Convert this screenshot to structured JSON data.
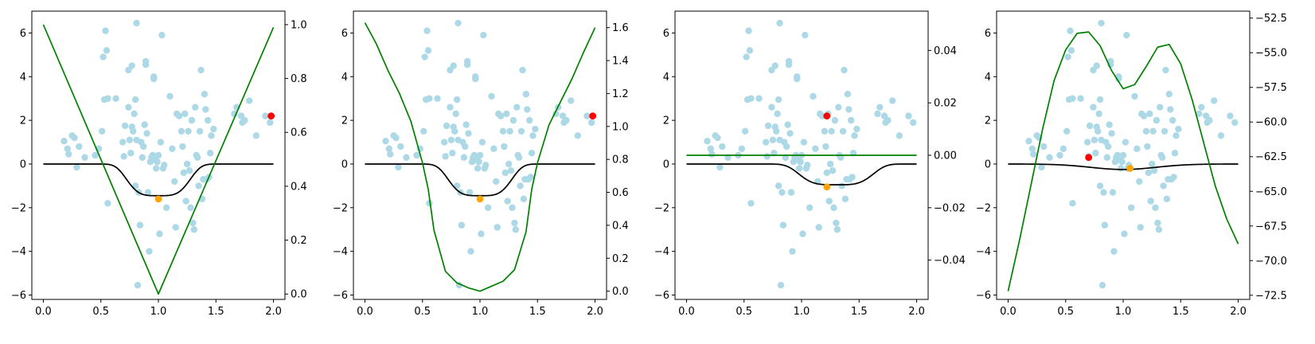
{
  "chart_data": [
    {
      "type": "scatter",
      "title": "",
      "xlabel": "",
      "ylabel": "",
      "y2label": "",
      "xlim": [
        -0.1,
        2.1
      ],
      "ylim": [
        -6.2,
        7.0
      ],
      "y2lim": [
        -0.02,
        1.05
      ],
      "xticks": [
        0.0,
        0.5,
        1.0,
        1.5,
        2.0
      ],
      "xtick_labels": [
        "0.0",
        "0.5",
        "1.0",
        "1.5",
        "2.0"
      ],
      "yticks": [
        -6,
        -4,
        -2,
        0,
        2,
        4,
        6
      ],
      "ytick_labels": [
        "−6",
        "−4",
        "−2",
        "0",
        "2",
        "4",
        "6"
      ],
      "y2ticks": [
        0.0,
        0.2,
        0.4,
        0.6,
        0.8,
        1.0
      ],
      "y2tick_labels": [
        "0.0",
        "0.2",
        "0.4",
        "0.6",
        "0.8",
        "1.0"
      ],
      "grid": false,
      "series": [
        {
          "kind": "black_curve",
          "axis": "left",
          "color": "#000000",
          "center": 1.0,
          "depth": 1.45,
          "width": 0.3,
          "power": 4
        },
        {
          "kind": "green_curve",
          "axis": "right",
          "color": "#008000",
          "x": [
            0.0,
            1.0,
            2.0
          ],
          "y": [
            1.0,
            0.0,
            0.99
          ]
        },
        {
          "kind": "marker",
          "axis": "left",
          "color": "#ffa500",
          "x": [
            1.0
          ],
          "y": [
            -1.6
          ]
        },
        {
          "kind": "marker",
          "axis": "left",
          "color": "#ff0000",
          "x": [
            1.98
          ],
          "y": [
            2.2
          ]
        }
      ]
    },
    {
      "type": "scatter",
      "title": "",
      "xlabel": "",
      "ylabel": "",
      "y2label": "",
      "xlim": [
        -0.1,
        2.1
      ],
      "ylim": [
        -6.2,
        7.0
      ],
      "y2lim": [
        -0.05,
        1.7
      ],
      "xticks": [
        0.0,
        0.5,
        1.0,
        1.5,
        2.0
      ],
      "xtick_labels": [
        "0.0",
        "0.5",
        "1.0",
        "1.5",
        "2.0"
      ],
      "yticks": [
        -6,
        -4,
        -2,
        0,
        2,
        4,
        6
      ],
      "ytick_labels": [
        "−6",
        "−4",
        "−2",
        "0",
        "2",
        "4",
        "6"
      ],
      "y2ticks": [
        0.0,
        0.2,
        0.4,
        0.6,
        0.8,
        1.0,
        1.2,
        1.4,
        1.6
      ],
      "y2tick_labels": [
        "0.0",
        "0.2",
        "0.4",
        "0.6",
        "0.8",
        "1.0",
        "1.2",
        "1.4",
        "1.6"
      ],
      "grid": false,
      "series": [
        {
          "kind": "black_curve",
          "axis": "left",
          "color": "#000000",
          "center": 1.0,
          "depth": 1.45,
          "width": 0.3,
          "power": 4
        },
        {
          "kind": "green_curve",
          "axis": "right",
          "color": "#008000",
          "x": [
            0.0,
            0.1,
            0.2,
            0.3,
            0.4,
            0.5,
            0.55,
            0.6,
            0.7,
            0.8,
            0.9,
            1.0,
            1.1,
            1.2,
            1.3,
            1.4,
            1.45,
            1.5,
            1.6,
            1.7,
            1.8,
            1.9,
            2.0
          ],
          "y": [
            1.63,
            1.5,
            1.34,
            1.2,
            1.03,
            0.78,
            0.62,
            0.37,
            0.12,
            0.05,
            0.02,
            0.0,
            0.03,
            0.06,
            0.13,
            0.36,
            0.62,
            0.78,
            1.01,
            1.15,
            1.29,
            1.45,
            1.6
          ]
        },
        {
          "kind": "marker",
          "axis": "left",
          "color": "#ffa500",
          "x": [
            1.0
          ],
          "y": [
            -1.6
          ]
        },
        {
          "kind": "marker",
          "axis": "left",
          "color": "#ff0000",
          "x": [
            1.98
          ],
          "y": [
            2.2
          ]
        }
      ]
    },
    {
      "type": "scatter",
      "title": "",
      "xlabel": "",
      "ylabel": "",
      "y2label": "",
      "xlim": [
        -0.1,
        2.1
      ],
      "ylim": [
        -6.2,
        7.0
      ],
      "y2lim": [
        -0.055,
        0.055
      ],
      "xticks": [
        0.0,
        0.5,
        1.0,
        1.5,
        2.0
      ],
      "xtick_labels": [
        "0.0",
        "0.5",
        "1.0",
        "1.5",
        "2.0"
      ],
      "yticks": [
        -6,
        -4,
        -2,
        0,
        2,
        4,
        6
      ],
      "ytick_labels": [
        "−6",
        "−4",
        "−2",
        "0",
        "2",
        "4",
        "6"
      ],
      "y2ticks": [
        -0.04,
        -0.02,
        0.0,
        0.02,
        0.04
      ],
      "y2tick_labels": [
        "−0.04",
        "−0.02",
        "0.00",
        "0.02",
        "0.04"
      ],
      "grid": false,
      "series": [
        {
          "kind": "black_curve",
          "axis": "left",
          "color": "#000000",
          "center": 1.3,
          "depth": 0.95,
          "width": 0.35,
          "power": 4
        },
        {
          "kind": "green_curve",
          "axis": "right",
          "color": "#008000",
          "x": [
            0.0,
            2.0
          ],
          "y": [
            0.0,
            0.0
          ]
        },
        {
          "kind": "marker",
          "axis": "left",
          "color": "#ffa500",
          "x": [
            1.22
          ],
          "y": [
            -1.05
          ]
        },
        {
          "kind": "marker",
          "axis": "left",
          "color": "#ff0000",
          "x": [
            1.22
          ],
          "y": [
            2.2
          ]
        }
      ]
    },
    {
      "type": "scatter",
      "title": "",
      "xlabel": "",
      "ylabel": "",
      "y2label": "",
      "xlim": [
        -0.1,
        2.1
      ],
      "ylim": [
        -6.2,
        7.0
      ],
      "y2lim": [
        -72.8,
        -52.0
      ],
      "xticks": [
        0.0,
        0.5,
        1.0,
        1.5,
        2.0
      ],
      "xtick_labels": [
        "0.0",
        "0.5",
        "1.0",
        "1.5",
        "2.0"
      ],
      "yticks": [
        -6,
        -4,
        -2,
        0,
        2,
        4,
        6
      ],
      "ytick_labels": [
        "−6",
        "−4",
        "−2",
        "0",
        "2",
        "4",
        "6"
      ],
      "y2ticks": [
        -72.5,
        -70.0,
        -67.5,
        -65.0,
        -62.5,
        -60.0,
        -57.5,
        -55.0,
        -52.5
      ],
      "y2tick_labels": [
        "−72.5",
        "−70.0",
        "−67.5",
        "−65.0",
        "−62.5",
        "−60.0",
        "−57.5",
        "−55.0",
        "−52.5"
      ],
      "grid": false,
      "series": [
        {
          "kind": "black_curve",
          "axis": "left",
          "color": "#000000",
          "center": 1.0,
          "depth": 0.25,
          "width": 0.4,
          "power": 2
        },
        {
          "kind": "green_curve",
          "axis": "right",
          "color": "#008000",
          "x": [
            0.0,
            0.1,
            0.2,
            0.3,
            0.4,
            0.5,
            0.6,
            0.7,
            0.8,
            0.9,
            1.0,
            1.1,
            1.2,
            1.3,
            1.4,
            1.5,
            1.6,
            1.7,
            1.8,
            1.9,
            2.0
          ],
          "y": [
            -72.2,
            -68.5,
            -64.5,
            -60.5,
            -57.0,
            -54.8,
            -53.6,
            -53.5,
            -54.5,
            -56.3,
            -57.6,
            -57.3,
            -56.0,
            -54.6,
            -54.4,
            -55.8,
            -58.4,
            -61.5,
            -64.6,
            -67.0,
            -68.8
          ]
        },
        {
          "kind": "marker",
          "axis": "left",
          "color": "#ff0000",
          "x": [
            0.7
          ],
          "y": [
            0.3
          ]
        },
        {
          "kind": "marker",
          "axis": "left",
          "color": "#ffa500",
          "x": [
            1.06
          ],
          "y": [
            -0.2
          ]
        }
      ]
    }
  ],
  "scatter_points": {
    "color": "#add8e6",
    "x": [
      0.18,
      0.21,
      0.22,
      0.25,
      0.27,
      0.29,
      0.31,
      0.36,
      0.45,
      0.48,
      0.51,
      0.52,
      0.53,
      0.54,
      0.55,
      0.56,
      0.56,
      0.63,
      0.69,
      0.7,
      0.71,
      0.74,
      0.74,
      0.75,
      0.76,
      0.77,
      0.77,
      0.78,
      0.79,
      0.8,
      0.8,
      0.81,
      0.81,
      0.82,
      0.83,
      0.84,
      0.85,
      0.86,
      0.87,
      0.88,
      0.89,
      0.89,
      0.9,
      0.91,
      0.92,
      0.93,
      0.94,
      0.95,
      0.96,
      0.96,
      0.97,
      0.98,
      0.99,
      1.0,
      1.01,
      1.02,
      1.03,
      1.04,
      1.05,
      1.07,
      1.1,
      1.12,
      1.14,
      1.15,
      1.16,
      1.18,
      1.2,
      1.21,
      1.22,
      1.23,
      1.24,
      1.25,
      1.26,
      1.27,
      1.28,
      1.29,
      1.3,
      1.31,
      1.32,
      1.33,
      1.34,
      1.35,
      1.36,
      1.37,
      1.38,
      1.39,
      1.4,
      1.41,
      1.42,
      1.43,
      1.44,
      1.45,
      1.46,
      1.48,
      1.66,
      1.68,
      1.72,
      1.73,
      1.75,
      1.79,
      1.85,
      1.93,
      1.97
    ],
    "y": [
      1.05,
      0.7,
      0.45,
      1.3,
      1.2,
      -0.15,
      0.8,
      0.3,
      0.4,
      0.7,
      1.5,
      4.9,
      2.95,
      6.1,
      5.2,
      -1.8,
      3.0,
      3.0,
      1.0,
      0.35,
      1.75,
      2.6,
      4.3,
      1.1,
      0.5,
      1.7,
      4.5,
      1.5,
      2.3,
      2.95,
      -1.0,
      1.1,
      6.45,
      -5.55,
      -1.3,
      -2.8,
      1.0,
      0.3,
      0.8,
      1.8,
      4.7,
      4.55,
      1.4,
      -1.3,
      -4.0,
      0.1,
      0.3,
      0.4,
      4.0,
      3.9,
      0.2,
      -0.2,
      0.1,
      0.4,
      -3.2,
      1.0,
      5.9,
      -0.2,
      -0.05,
      -2.0,
      3.1,
      0.7,
      -0.8,
      -2.9,
      2.3,
      2.2,
      1.5,
      0.8,
      -0.4,
      2.3,
      -1.7,
      0.0,
      1.5,
      -0.3,
      -2.0,
      2.0,
      -2.7,
      -3.0,
      2.6,
      0.4,
      0.3,
      -1.0,
      1.5,
      4.3,
      -1.6,
      -0.7,
      3.2,
      2.5,
      -0.7,
      2.0,
      -0.6,
      0.5,
      1.3,
      1.6,
      2.3,
      2.6,
      2.2,
      1.9,
      2.0,
      2.9,
      1.3,
      2.2,
      1.9
    ]
  }
}
